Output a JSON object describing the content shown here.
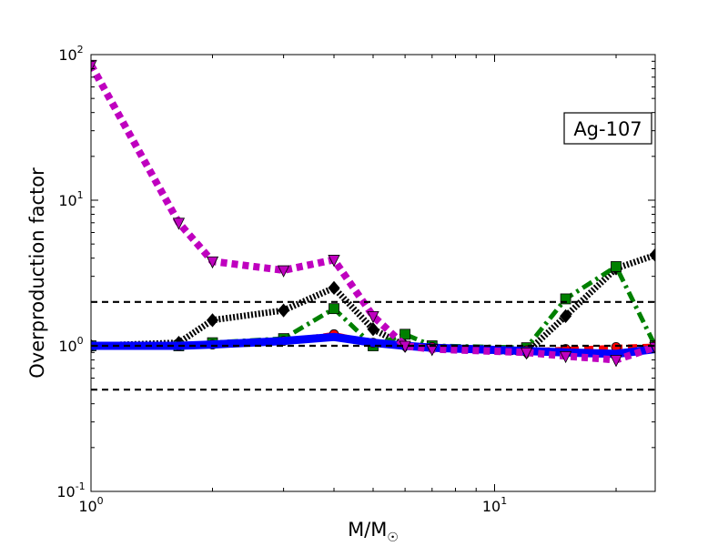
{
  "chart_data": {
    "type": "line",
    "title": "",
    "xlabel": "M/M",
    "xlabel_sub": "☉",
    "ylabel": "Overproduction factor",
    "xscale": "log",
    "yscale": "log",
    "xlim": [
      1,
      25
    ],
    "ylim": [
      0.1,
      100
    ],
    "x_ticks": [
      {
        "value": 1,
        "base": "10",
        "exp": "0"
      },
      {
        "value": 10,
        "base": "10",
        "exp": "1"
      }
    ],
    "y_ticks": [
      {
        "value": 0.1,
        "base": "10",
        "exp": "-1"
      },
      {
        "value": 1,
        "base": "10",
        "exp": "0"
      },
      {
        "value": 10,
        "base": "10",
        "exp": "1"
      },
      {
        "value": 100,
        "base": "10",
        "exp": "2"
      }
    ],
    "annotation": "Ag-107",
    "annotation_position": "upper-right",
    "legend": "none",
    "grid": false,
    "reference_lines": [
      {
        "y": 2.0,
        "color": "#000000",
        "dash": "dashed"
      },
      {
        "y": 1.0,
        "color": "#000000",
        "dash": "dashed"
      },
      {
        "y": 0.5,
        "color": "#000000",
        "dash": "dashed"
      }
    ],
    "series": [
      {
        "color": "#000000",
        "dash": "dotted-dense",
        "marker": "diamond",
        "x": [
          1,
          1.65,
          2,
          3,
          4,
          5,
          6,
          7,
          12,
          15,
          20,
          25
        ],
        "y": [
          1.0,
          1.05,
          1.5,
          1.75,
          2.5,
          1.3,
          1.0,
          0.97,
          0.9,
          1.6,
          3.4,
          4.2
        ]
      },
      {
        "color": "#008000",
        "dash": "dashdot",
        "marker": "square",
        "x": [
          1,
          1.65,
          2,
          3,
          4,
          5,
          6,
          7,
          12,
          15,
          20,
          25
        ],
        "y": [
          1.0,
          1.0,
          1.05,
          1.12,
          1.8,
          1.0,
          1.2,
          1.0,
          0.97,
          2.1,
          3.5,
          1.0
        ]
      },
      {
        "color": "#ff0000",
        "dash": "dashed",
        "marker": "circle",
        "x": [
          1,
          1.65,
          2,
          3,
          4,
          5,
          6,
          7,
          12,
          15,
          20,
          25
        ],
        "y": [
          1.0,
          1.0,
          1.02,
          1.08,
          1.2,
          1.05,
          1.0,
          0.98,
          0.93,
          0.95,
          0.98,
          1.0
        ]
      },
      {
        "color": "#0000ff",
        "dash": "solid",
        "marker": "none",
        "x": [
          1,
          1.65,
          2,
          3,
          4,
          5,
          6,
          7,
          12,
          15,
          20,
          25
        ],
        "y": [
          1.0,
          1.0,
          1.02,
          1.08,
          1.15,
          1.05,
          1.0,
          0.97,
          0.92,
          0.9,
          0.88,
          0.95
        ]
      },
      {
        "color": "#bf00bf",
        "dash": "dotted-thick",
        "marker": "triangle-down",
        "x": [
          1,
          1.65,
          2,
          3,
          4,
          5,
          6,
          7,
          12,
          15,
          20,
          25
        ],
        "y": [
          85,
          7,
          3.8,
          3.3,
          3.9,
          1.6,
          1.0,
          0.95,
          0.9,
          0.85,
          0.8,
          0.98
        ]
      }
    ]
  }
}
